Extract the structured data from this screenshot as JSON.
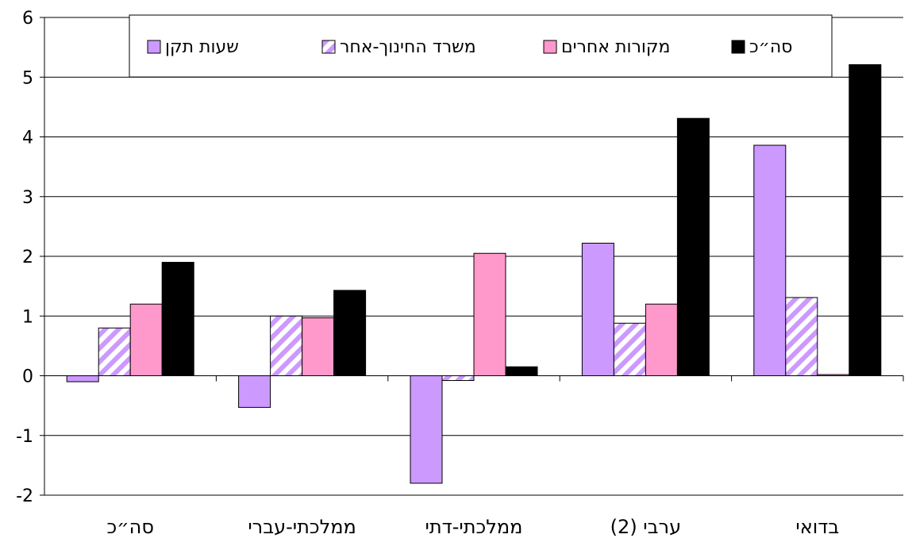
{
  "chart_data": {
    "type": "bar",
    "categories": [
      "סה״כ",
      "ממלכתי-עברי",
      "ממלכתי-דתי",
      "ערבי (2)",
      "בדואי"
    ],
    "series": [
      {
        "name": "שעות תקן",
        "values": [
          -0.1,
          -0.53,
          -1.8,
          2.22,
          3.86
        ],
        "color": "#cc99ff",
        "pattern": "solid"
      },
      {
        "name": "משרד החינוך-אחר",
        "values": [
          0.8,
          1.0,
          -0.08,
          0.88,
          1.31
        ],
        "color": "#cc99ff",
        "pattern": "diagonal-stripes"
      },
      {
        "name": "מקורות אחרים",
        "values": [
          1.2,
          0.97,
          2.05,
          1.2,
          0.02
        ],
        "color": "#ff99cc",
        "pattern": "solid"
      },
      {
        "name": "סה״כ",
        "values": [
          1.9,
          1.43,
          0.15,
          4.31,
          5.21
        ],
        "color": "#000000",
        "pattern": "solid"
      }
    ],
    "ylim": [
      -2,
      6
    ],
    "yticks": [
      "-2",
      "-1",
      "0",
      "1",
      "2",
      "3",
      "4",
      "5",
      "6"
    ],
    "grid": "horizontal",
    "legend_placement": "top",
    "title": "",
    "xlabel": "",
    "ylabel": ""
  }
}
